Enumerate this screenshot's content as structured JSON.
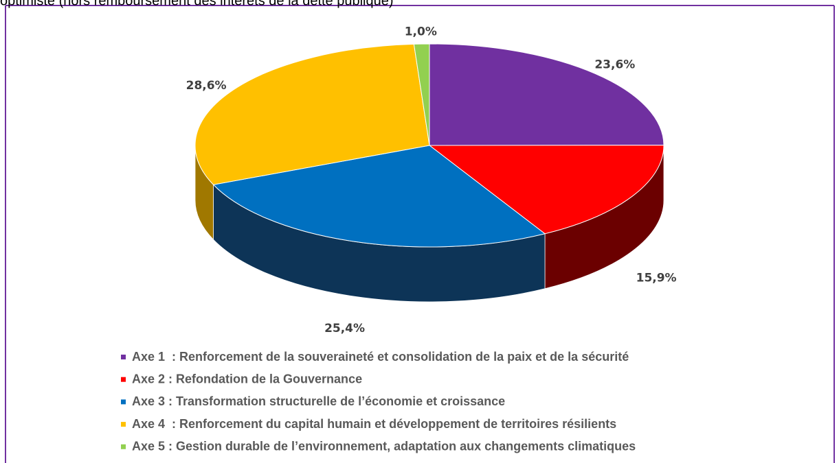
{
  "chart_data": {
    "type": "pie3d",
    "title": "optimiste (hors remboursement des intérêts de la dette publique)",
    "categories": [
      "Axe 1  : Renforcement de la souveraineté et consolidation de la paix et de la sécurité",
      "Axe 2 : Refondation de la Gouvernance",
      "Axe 3 : Transformation structurelle de l’économie et croissance",
      "Axe 4  : Renforcement du capital humain et développement de territoires résilients",
      "Axe 5 : Gestion durable de l’environnement, adaptation aux changements climatiques"
    ],
    "values": [
      23.6,
      15.9,
      25.4,
      28.6,
      1.0
    ],
    "value_labels": [
      "23,6%",
      "15,9%",
      "25,4%",
      "28,6%",
      "1,0%"
    ],
    "colors": [
      "#7030a0",
      "#ff0000",
      "#0070c0",
      "#ffc000",
      "#92d050"
    ],
    "side_colors": [
      "#3e1a5a",
      "#6b0000",
      "#0d3457",
      "#a07800",
      "#5a8a2a"
    ],
    "legend": "bottom"
  }
}
